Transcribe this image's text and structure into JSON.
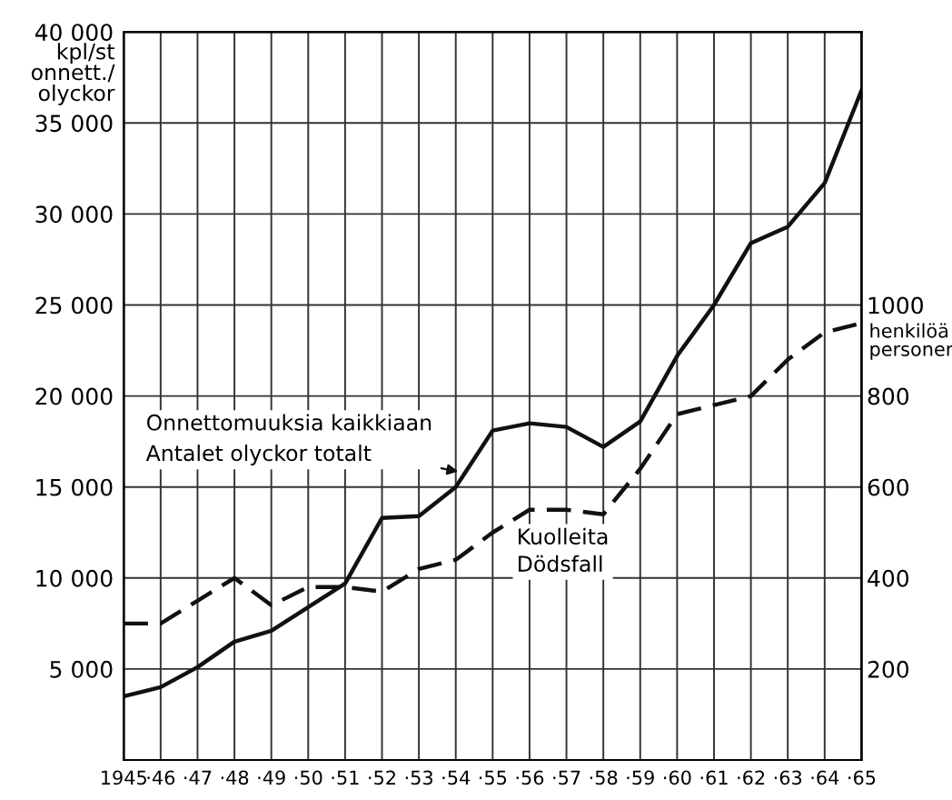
{
  "chart_data": {
    "type": "line",
    "categories": [
      "1945",
      "·46",
      "·47",
      "·48",
      "·49",
      "·50",
      "·51",
      "·52",
      "·53",
      "·54",
      "·55",
      "·56",
      "·57",
      "·58",
      "·59",
      "·60",
      "·61",
      "·62",
      "·63",
      "·64",
      "·65"
    ],
    "series": [
      {
        "name": "Onnettomuuksia kaikkiaan\nAntalet olyckor totalt",
        "color": "#111111",
        "line_style": "solid",
        "values": [
          3500,
          4000,
          5100,
          6500,
          7100,
          8400,
          9700,
          13300,
          13400,
          15000,
          18100,
          18500,
          18300,
          17200,
          18600,
          22200,
          25000,
          28400,
          29300,
          31700,
          36800
        ]
      },
      {
        "name": "Kuolleita\nDödsfall",
        "color": "#111111",
        "line_style": "dashed",
        "axis": "y2",
        "values": [
          300,
          300,
          350,
          400,
          340,
          380,
          380,
          370,
          420,
          440,
          500,
          550,
          550,
          540,
          640,
          760,
          780,
          800,
          880,
          940,
          960
        ]
      }
    ],
    "ylabel": "kpl/st\nonnett./\nolyckor",
    "y2label": "henkilöä\npersoner",
    "ylim": [
      0,
      40000
    ],
    "yticks": [
      {
        "value": 5000,
        "label": "5 000"
      },
      {
        "value": 10000,
        "label": "10 000"
      },
      {
        "value": 15000,
        "label": "15 000"
      },
      {
        "value": 20000,
        "label": "20 000"
      },
      {
        "value": 25000,
        "label": "25 000"
      },
      {
        "value": 30000,
        "label": "30 000"
      },
      {
        "value": 35000,
        "label": "35 000"
      },
      {
        "value": 40000,
        "label": "40 000"
      }
    ],
    "y2lim": [
      0,
      1600
    ],
    "y2ticks": [
      200,
      400,
      600,
      800,
      1000
    ],
    "grid": true,
    "marker": "none",
    "legend": false
  }
}
